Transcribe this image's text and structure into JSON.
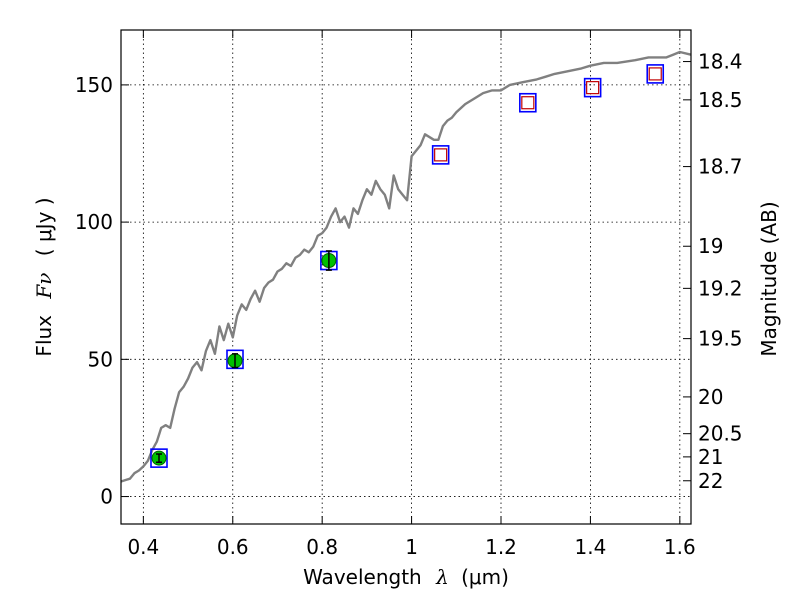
{
  "chart_data": {
    "type": "scatter",
    "xlabel_prefix": "Wavelength",
    "xlabel_symbol": "λ",
    "xlabel_unit": "(μm)",
    "ylabel_prefix": "Flux",
    "ylabel_symbol": "Fν",
    "ylabel_unit": "( μJy )",
    "ylabel_right": "Magnitude (AB)",
    "xlim": [
      0.35,
      1.625
    ],
    "ylim": [
      -10,
      170
    ],
    "x_ticks": [
      0.4,
      0.6,
      0.8,
      1.0,
      1.2,
      1.4,
      1.6
    ],
    "x_tick_labels": [
      "0.4",
      "0.6",
      "0.8",
      "1",
      "1.2",
      "1.4",
      "1.6"
    ],
    "y_ticks": [
      0,
      50,
      100,
      150
    ],
    "y_tick_labels": [
      "0",
      "50",
      "100",
      "150"
    ],
    "mag_ticks": [
      18.4,
      18.5,
      18.7,
      19,
      19.2,
      19.5,
      20,
      20.5,
      21,
      22
    ],
    "mag_tick_labels": [
      "18.4",
      "18.5",
      "18.7",
      "19",
      "19.2",
      "19.5",
      "20",
      "20.5",
      "21",
      "22"
    ],
    "grid": true,
    "model_color": "#808080",
    "model_spectrum": {
      "name": "",
      "x": [
        0.35,
        0.37,
        0.38,
        0.39,
        0.4,
        0.41,
        0.42,
        0.43,
        0.44,
        0.45,
        0.46,
        0.47,
        0.48,
        0.49,
        0.5,
        0.51,
        0.52,
        0.53,
        0.54,
        0.55,
        0.56,
        0.57,
        0.58,
        0.59,
        0.6,
        0.61,
        0.62,
        0.63,
        0.64,
        0.65,
        0.66,
        0.67,
        0.68,
        0.69,
        0.7,
        0.71,
        0.72,
        0.73,
        0.74,
        0.75,
        0.76,
        0.77,
        0.78,
        0.79,
        0.8,
        0.81,
        0.82,
        0.83,
        0.84,
        0.85,
        0.86,
        0.87,
        0.88,
        0.89,
        0.9,
        0.91,
        0.92,
        0.93,
        0.94,
        0.95,
        0.96,
        0.97,
        0.98,
        0.99,
        1.0,
        1.02,
        1.03,
        1.05,
        1.06,
        1.07,
        1.08,
        1.09,
        1.1,
        1.12,
        1.14,
        1.16,
        1.18,
        1.2,
        1.22,
        1.25,
        1.28,
        1.3,
        1.32,
        1.35,
        1.38,
        1.4,
        1.43,
        1.46,
        1.5,
        1.53,
        1.55,
        1.57,
        1.585,
        1.6,
        1.625
      ],
      "y": [
        5.5,
        6.5,
        8.5,
        9.5,
        11,
        13,
        17,
        20,
        25,
        26,
        25,
        32,
        38,
        40,
        43,
        47,
        49,
        46,
        53,
        57,
        52,
        62,
        57,
        63,
        58,
        66,
        70,
        68,
        72,
        75,
        71,
        76,
        78,
        79,
        82,
        83,
        85,
        84,
        87,
        88,
        90,
        89,
        91,
        95,
        96,
        98,
        102,
        105,
        100,
        102,
        98,
        105,
        103,
        108,
        112,
        110,
        115,
        112,
        110,
        105,
        117,
        112,
        110,
        108,
        124,
        128,
        132,
        130,
        130,
        135,
        137,
        138,
        140,
        143,
        145,
        147,
        148,
        148,
        150,
        151,
        152,
        153,
        154,
        155,
        156,
        157,
        158,
        158,
        159,
        160,
        160,
        160,
        161,
        162,
        161
      ]
    },
    "photometry_detected": {
      "name": "",
      "color": "#00c000",
      "x": [
        0.435,
        0.605,
        0.815
      ],
      "y": [
        14,
        49.5,
        86
      ],
      "yerr": [
        1.5,
        2.5,
        3.5
      ]
    },
    "photometry_model_bands": {
      "name": "",
      "color": "#0000ff",
      "x": [
        0.435,
        0.605,
        0.815,
        1.065,
        1.26,
        1.405,
        1.545
      ],
      "y": [
        14,
        50,
        86,
        124.5,
        143.5,
        149,
        154
      ]
    },
    "photometry_upper": {
      "name": "",
      "color": "#c00000",
      "x": [
        1.065,
        1.26,
        1.405,
        1.545
      ],
      "y": [
        124.5,
        143.5,
        149,
        154
      ]
    }
  }
}
